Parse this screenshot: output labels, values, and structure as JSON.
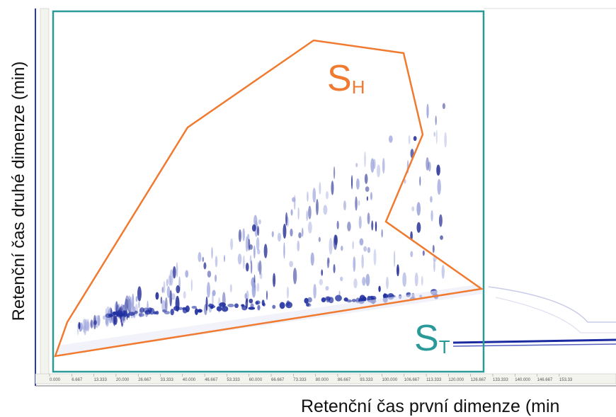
{
  "figure": {
    "y_axis_label": "Retenční čas druhé dimenze (min)",
    "x_axis_label": "Retenční čas první dimenze (min",
    "region_h": {
      "letter": "S",
      "subscript": "H"
    },
    "region_t": {
      "letter": "S",
      "subscript": "T"
    },
    "x_tick_labels": [
      "0.000",
      "6.667",
      "13.333",
      "20.000",
      "26.667",
      "33.333",
      "40.000",
      "46.667",
      "53.333",
      "60.000",
      "66.667",
      "73.333",
      "80.000",
      "86.667",
      "93.333",
      "100.000",
      "106.667",
      "113.333",
      "120.000",
      "126.667",
      "133.333",
      "140.000",
      "146.667",
      "153.33"
    ]
  }
}
